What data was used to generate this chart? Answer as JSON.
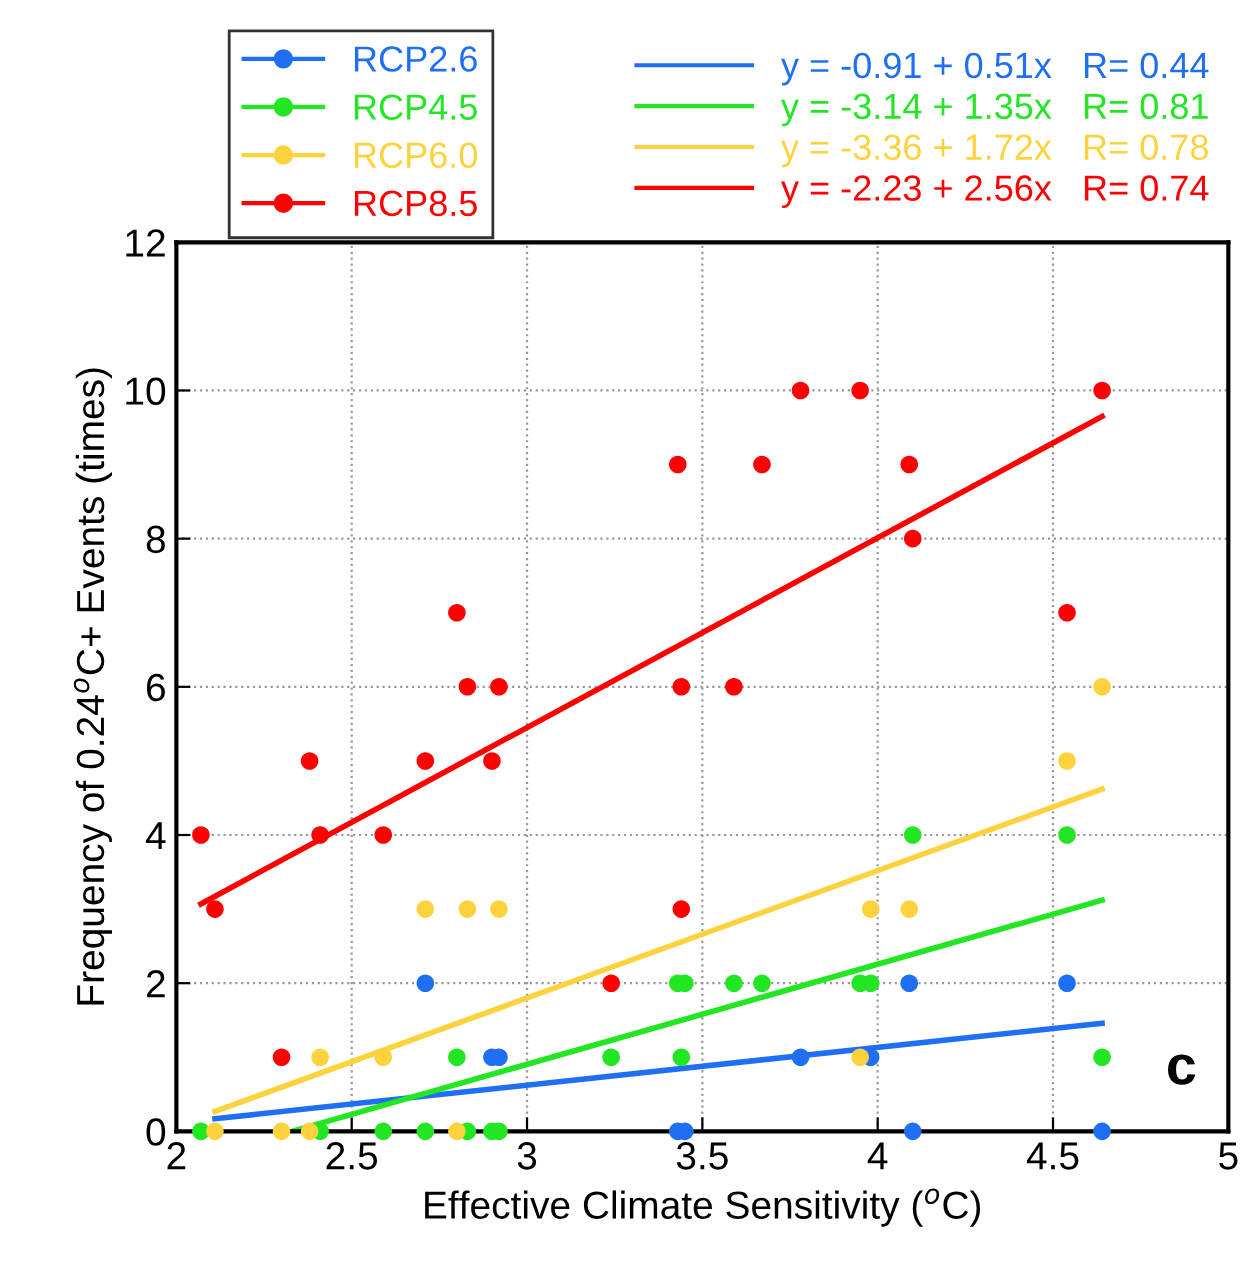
{
  "chart_data": {
    "type": "scatter",
    "xlabel": "Effective Climate Sensitivity ($^{o}$C)",
    "ylabel": "Frequency of 0.24$^{o}$C+ Events (times)",
    "xlim": [
      2,
      5
    ],
    "xticks": [
      2,
      2.5,
      3,
      3.5,
      4,
      4.5,
      5
    ],
    "ylim": [
      0,
      12
    ],
    "yticks": [
      0,
      2,
      4,
      6,
      8,
      10,
      12
    ],
    "grid": true,
    "marker": "circle",
    "legend": "top",
    "annotations": [
      "c"
    ],
    "series": [
      {
        "name": "RCP2.6",
        "color": "#1f6ff5",
        "x": [
          2.71,
          2.9,
          2.92,
          3.43,
          3.45,
          3.78,
          3.98,
          4.09,
          4.1,
          4.54,
          4.64
        ],
        "values": [
          2,
          1,
          1,
          0,
          0,
          1,
          1,
          2,
          0,
          2,
          0
        ]
      },
      {
        "name": "RCP4.5",
        "color": "#22e622",
        "x": [
          2.07,
          2.41,
          2.59,
          2.71,
          2.8,
          2.83,
          2.9,
          2.92,
          3.24,
          3.43,
          3.44,
          3.45,
          3.59,
          3.67,
          3.95,
          3.98,
          4.1,
          4.54,
          4.64
        ],
        "values": [
          0,
          0,
          0,
          0,
          1,
          0,
          0,
          0,
          1,
          2,
          1,
          2,
          2,
          2,
          2,
          2,
          4,
          4,
          1
        ]
      },
      {
        "name": "RCP6.0",
        "color": "#fdd23c",
        "x": [
          2.11,
          2.3,
          2.38,
          2.41,
          2.59,
          2.71,
          2.8,
          2.83,
          2.92,
          3.95,
          3.98,
          4.09,
          4.54,
          4.64
        ],
        "values": [
          0,
          0,
          0,
          1,
          1,
          3,
          0,
          3,
          3,
          1,
          3,
          3,
          5,
          6
        ]
      },
      {
        "name": "RCP8.5",
        "color": "#ff0000",
        "x": [
          2.07,
          2.11,
          2.3,
          2.38,
          2.41,
          2.59,
          2.71,
          2.8,
          2.83,
          2.9,
          2.92,
          3.24,
          3.43,
          3.44,
          3.44,
          3.59,
          3.67,
          3.78,
          3.95,
          4.09,
          4.1,
          4.54,
          4.64
        ],
        "values": [
          4,
          3,
          1,
          5,
          4,
          4,
          5,
          7,
          6,
          5,
          6,
          2,
          9,
          6,
          3,
          6,
          9,
          10,
          10,
          9,
          8,
          7,
          10
        ]
      },
      {
        "name": "y = -0.91 + 0.51x   R= 0.44",
        "type": "line",
        "marker": "none",
        "color": "#1f6ff5",
        "x": [
          2.11,
          4.64
        ],
        "values": [
          0.17,
          1.46
        ]
      },
      {
        "name": "y = -3.14 + 1.35x   R= 0.81",
        "type": "line",
        "marker": "none",
        "color": "#22e622",
        "x": [
          2.33,
          4.64
        ],
        "values": [
          0.0,
          3.12
        ]
      },
      {
        "name": "y = -3.36 + 1.72x   R= 0.78",
        "type": "line",
        "marker": "none",
        "color": "#fdd23c",
        "x": [
          2.11,
          4.64
        ],
        "values": [
          0.27,
          4.62
        ]
      },
      {
        "name": "y = -2.23 + 2.56x   R= 0.74",
        "type": "line",
        "marker": "none",
        "color": "#ff0000",
        "x": [
          2.07,
          4.64
        ],
        "values": [
          3.07,
          9.65
        ]
      }
    ]
  }
}
